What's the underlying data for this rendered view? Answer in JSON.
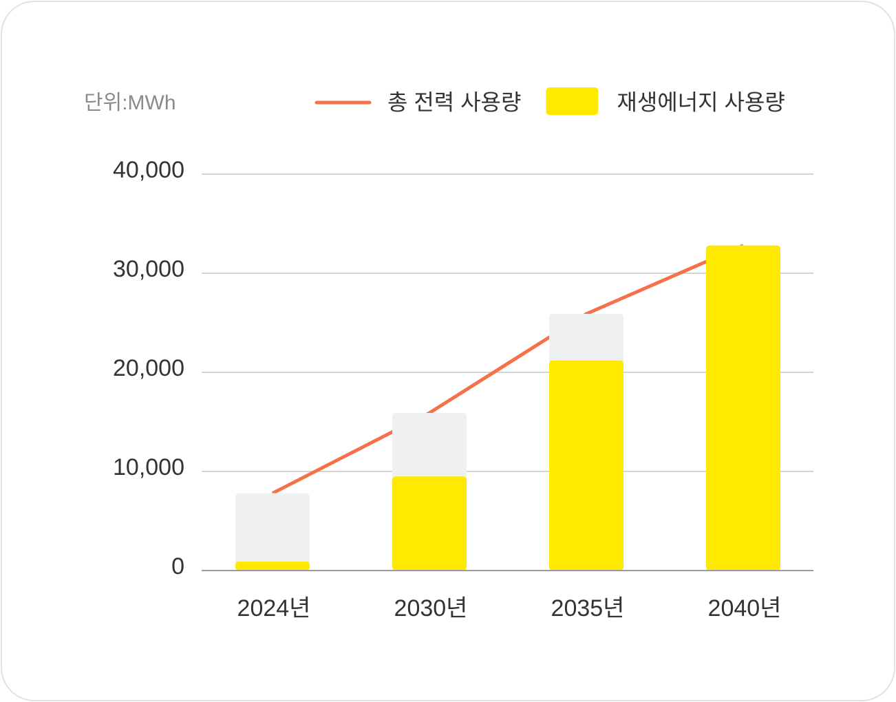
{
  "chart_data": {
    "type": "bar",
    "unit_label": "단위:MWh",
    "categories": [
      "2024년",
      "2030년",
      "2035년",
      "2040년"
    ],
    "series": [
      {
        "name": "총 전력 사용량",
        "type": "line",
        "color": "#f4714a",
        "bar_color": "#eef0f1",
        "values": [
          7800,
          15900,
          25900,
          32800
        ]
      },
      {
        "name": "재생에너지 사용량",
        "type": "bar",
        "color": "#ffe900",
        "values": [
          900,
          9500,
          21200,
          32800
        ]
      }
    ],
    "ylim": [
      0,
      40000
    ],
    "yticks": [
      0,
      {
        "value": 10000,
        "label": "10,000"
      },
      {
        "value": 20000,
        "label": "20,000"
      },
      {
        "value": 30000,
        "label": "30,000"
      },
      {
        "value": 40000,
        "label": "40,000"
      }
    ],
    "grid": true
  }
}
